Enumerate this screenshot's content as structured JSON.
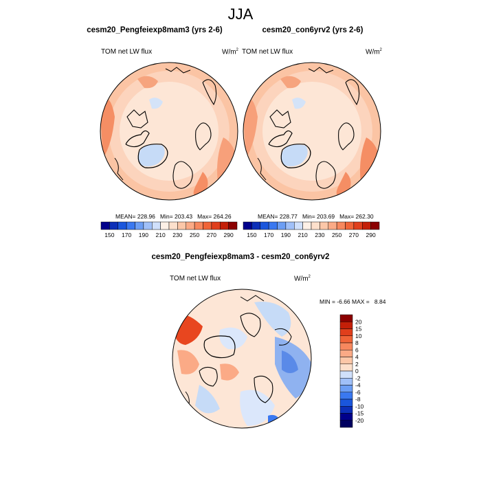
{
  "figure": {
    "season_title": "JJA"
  },
  "panels": [
    {
      "title": "cesm20_Pengfeiexp8mam3 (yrs 2-6)",
      "variable": "TOM net LW flux",
      "units_base": "W/m",
      "units_exp": "2",
      "stats": {
        "mean": "228.96",
        "min": "203.43",
        "max": "264.26"
      }
    },
    {
      "title": "cesm20_con6yrv2 (yrs 2-6)",
      "variable": "TOM net LW flux",
      "units_base": "W/m",
      "units_exp": "2",
      "stats": {
        "mean": "228.77",
        "min": "203.69",
        "max": "262.30"
      }
    }
  ],
  "abs_colorbar": {
    "tick_labels": [
      "150",
      "170",
      "190",
      "210",
      "230",
      "250",
      "270",
      "290"
    ],
    "colors": [
      "#00008b",
      "#0c2fb8",
      "#1a56dc",
      "#3a78f0",
      "#6c9ef4",
      "#a0c0f8",
      "#d0e0fb",
      "#fdf0e6",
      "#fde0cc",
      "#fcc7a8",
      "#fbaa86",
      "#f7885e",
      "#f06438",
      "#e03f1c",
      "#c41f08",
      "#8b0000"
    ]
  },
  "diff_panel": {
    "title": "cesm20_Pengfeiexp8mam3 - cesm20_con6yrv2",
    "variable": "TOM net LW flux",
    "units_base": "W/m",
    "units_exp": "2",
    "min_label": "MIN =",
    "min_value": "-6.66",
    "max_label": "MAX =",
    "max_value": "8.84"
  },
  "diff_colorbar": {
    "levels": [
      "20",
      "15",
      "10",
      "8",
      "6",
      "4",
      "2",
      "0",
      "-2",
      "-4",
      "-6",
      "-8",
      "-10",
      "-15",
      "-20"
    ],
    "colors": [
      "#8b0000",
      "#c41f08",
      "#e03f1c",
      "#f06438",
      "#f7885e",
      "#fbaa86",
      "#fcc7a8",
      "#fde0cc",
      "#d0e0fb",
      "#a0c0f8",
      "#6c9ef4",
      "#3a78f0",
      "#1a56dc",
      "#0c2fb8",
      "#00008b",
      "#000060"
    ]
  },
  "labels": {
    "mean_prefix": "MEAN=",
    "min_prefix": "Min=",
    "max_prefix": "Max="
  }
}
